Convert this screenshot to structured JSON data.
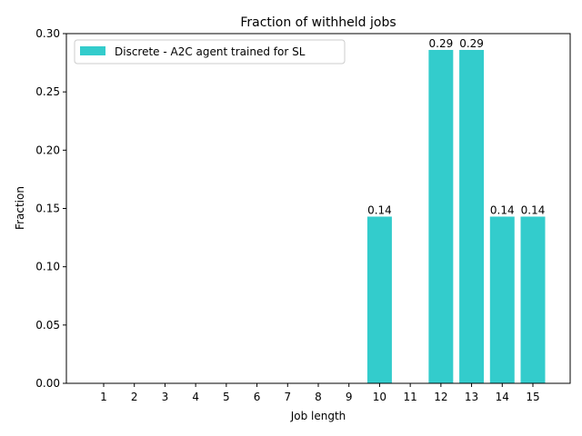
{
  "chart_data": {
    "type": "bar",
    "title": "Fraction of withheld jobs",
    "xlabel": "Job length",
    "ylabel": "Fraction",
    "categories": [
      "1",
      "2",
      "3",
      "4",
      "5",
      "6",
      "7",
      "8",
      "9",
      "10",
      "11",
      "12",
      "13",
      "14",
      "15"
    ],
    "series": [
      {
        "name": "Discrete - A2C agent trained for SL",
        "color": "#33cccc",
        "values": [
          0,
          0,
          0,
          0,
          0,
          0,
          0,
          0,
          0,
          0.143,
          0,
          0.286,
          0.286,
          0.143,
          0.143
        ],
        "labels": [
          "",
          "",
          "",
          "",
          "",
          "",
          "",
          "",
          "",
          "0.14",
          "",
          "0.29",
          "0.29",
          "0.14",
          "0.14"
        ]
      }
    ],
    "ylim": [
      0,
      0.3
    ],
    "yticks": [
      "0.00",
      "0.05",
      "0.10",
      "0.15",
      "0.20",
      "0.25",
      "0.30"
    ],
    "grid": false,
    "legend_position": "top-left"
  }
}
